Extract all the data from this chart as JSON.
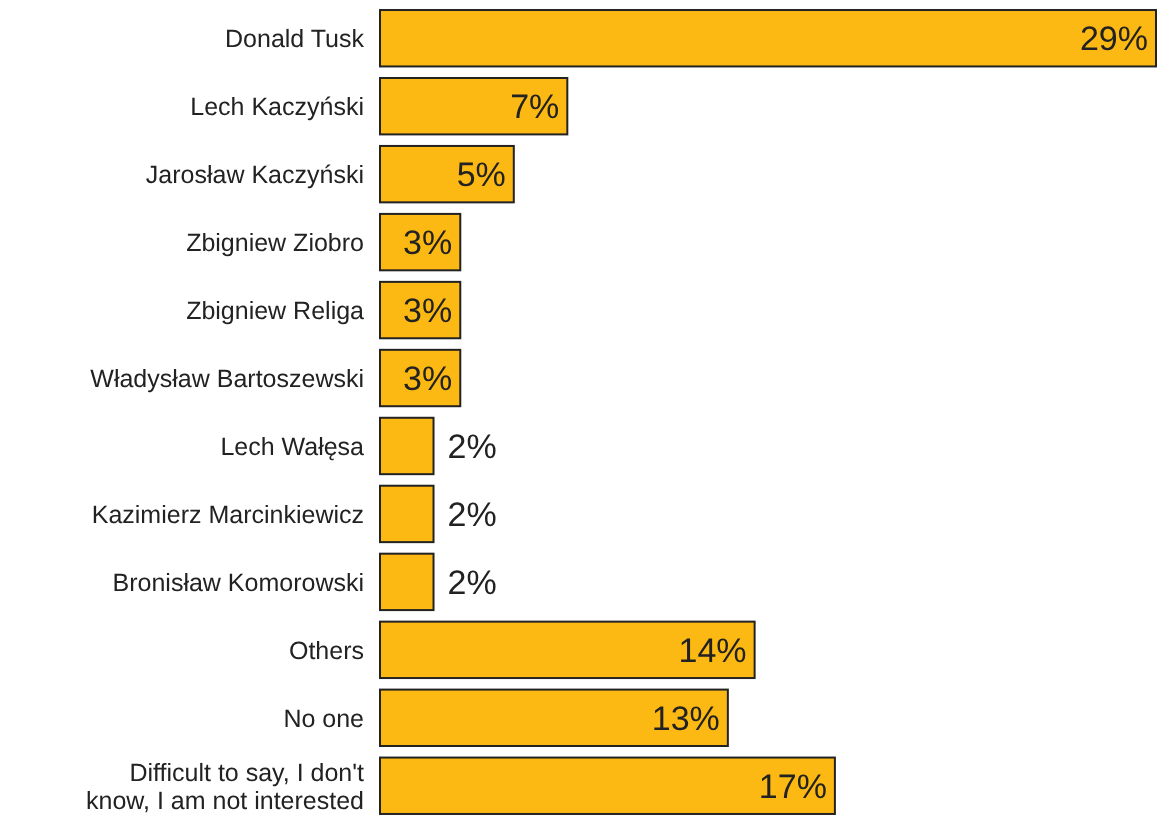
{
  "chart_data": {
    "type": "bar",
    "orientation": "horizontal",
    "categories": [
      "Donald Tusk",
      "Lech Kaczyński",
      "Jarosław Kaczyński",
      "Zbigniew Ziobro",
      "Zbigniew Religa",
      "Władysław Bartoszewski",
      "Lech Wałęsa",
      "Kazimierz Marcinkiewicz",
      "Bronisław Komorowski",
      "Others",
      "No one",
      "Difficult to say, I don't know, I am not interested"
    ],
    "values": [
      29,
      7,
      5,
      3,
      3,
      3,
      2,
      2,
      2,
      14,
      13,
      17
    ],
    "value_labels": [
      "29%",
      "7%",
      "5%",
      "3%",
      "3%",
      "3%",
      "2%",
      "2%",
      "2%",
      "14%",
      "13%",
      "17%"
    ],
    "color": "#fdb913"
  }
}
